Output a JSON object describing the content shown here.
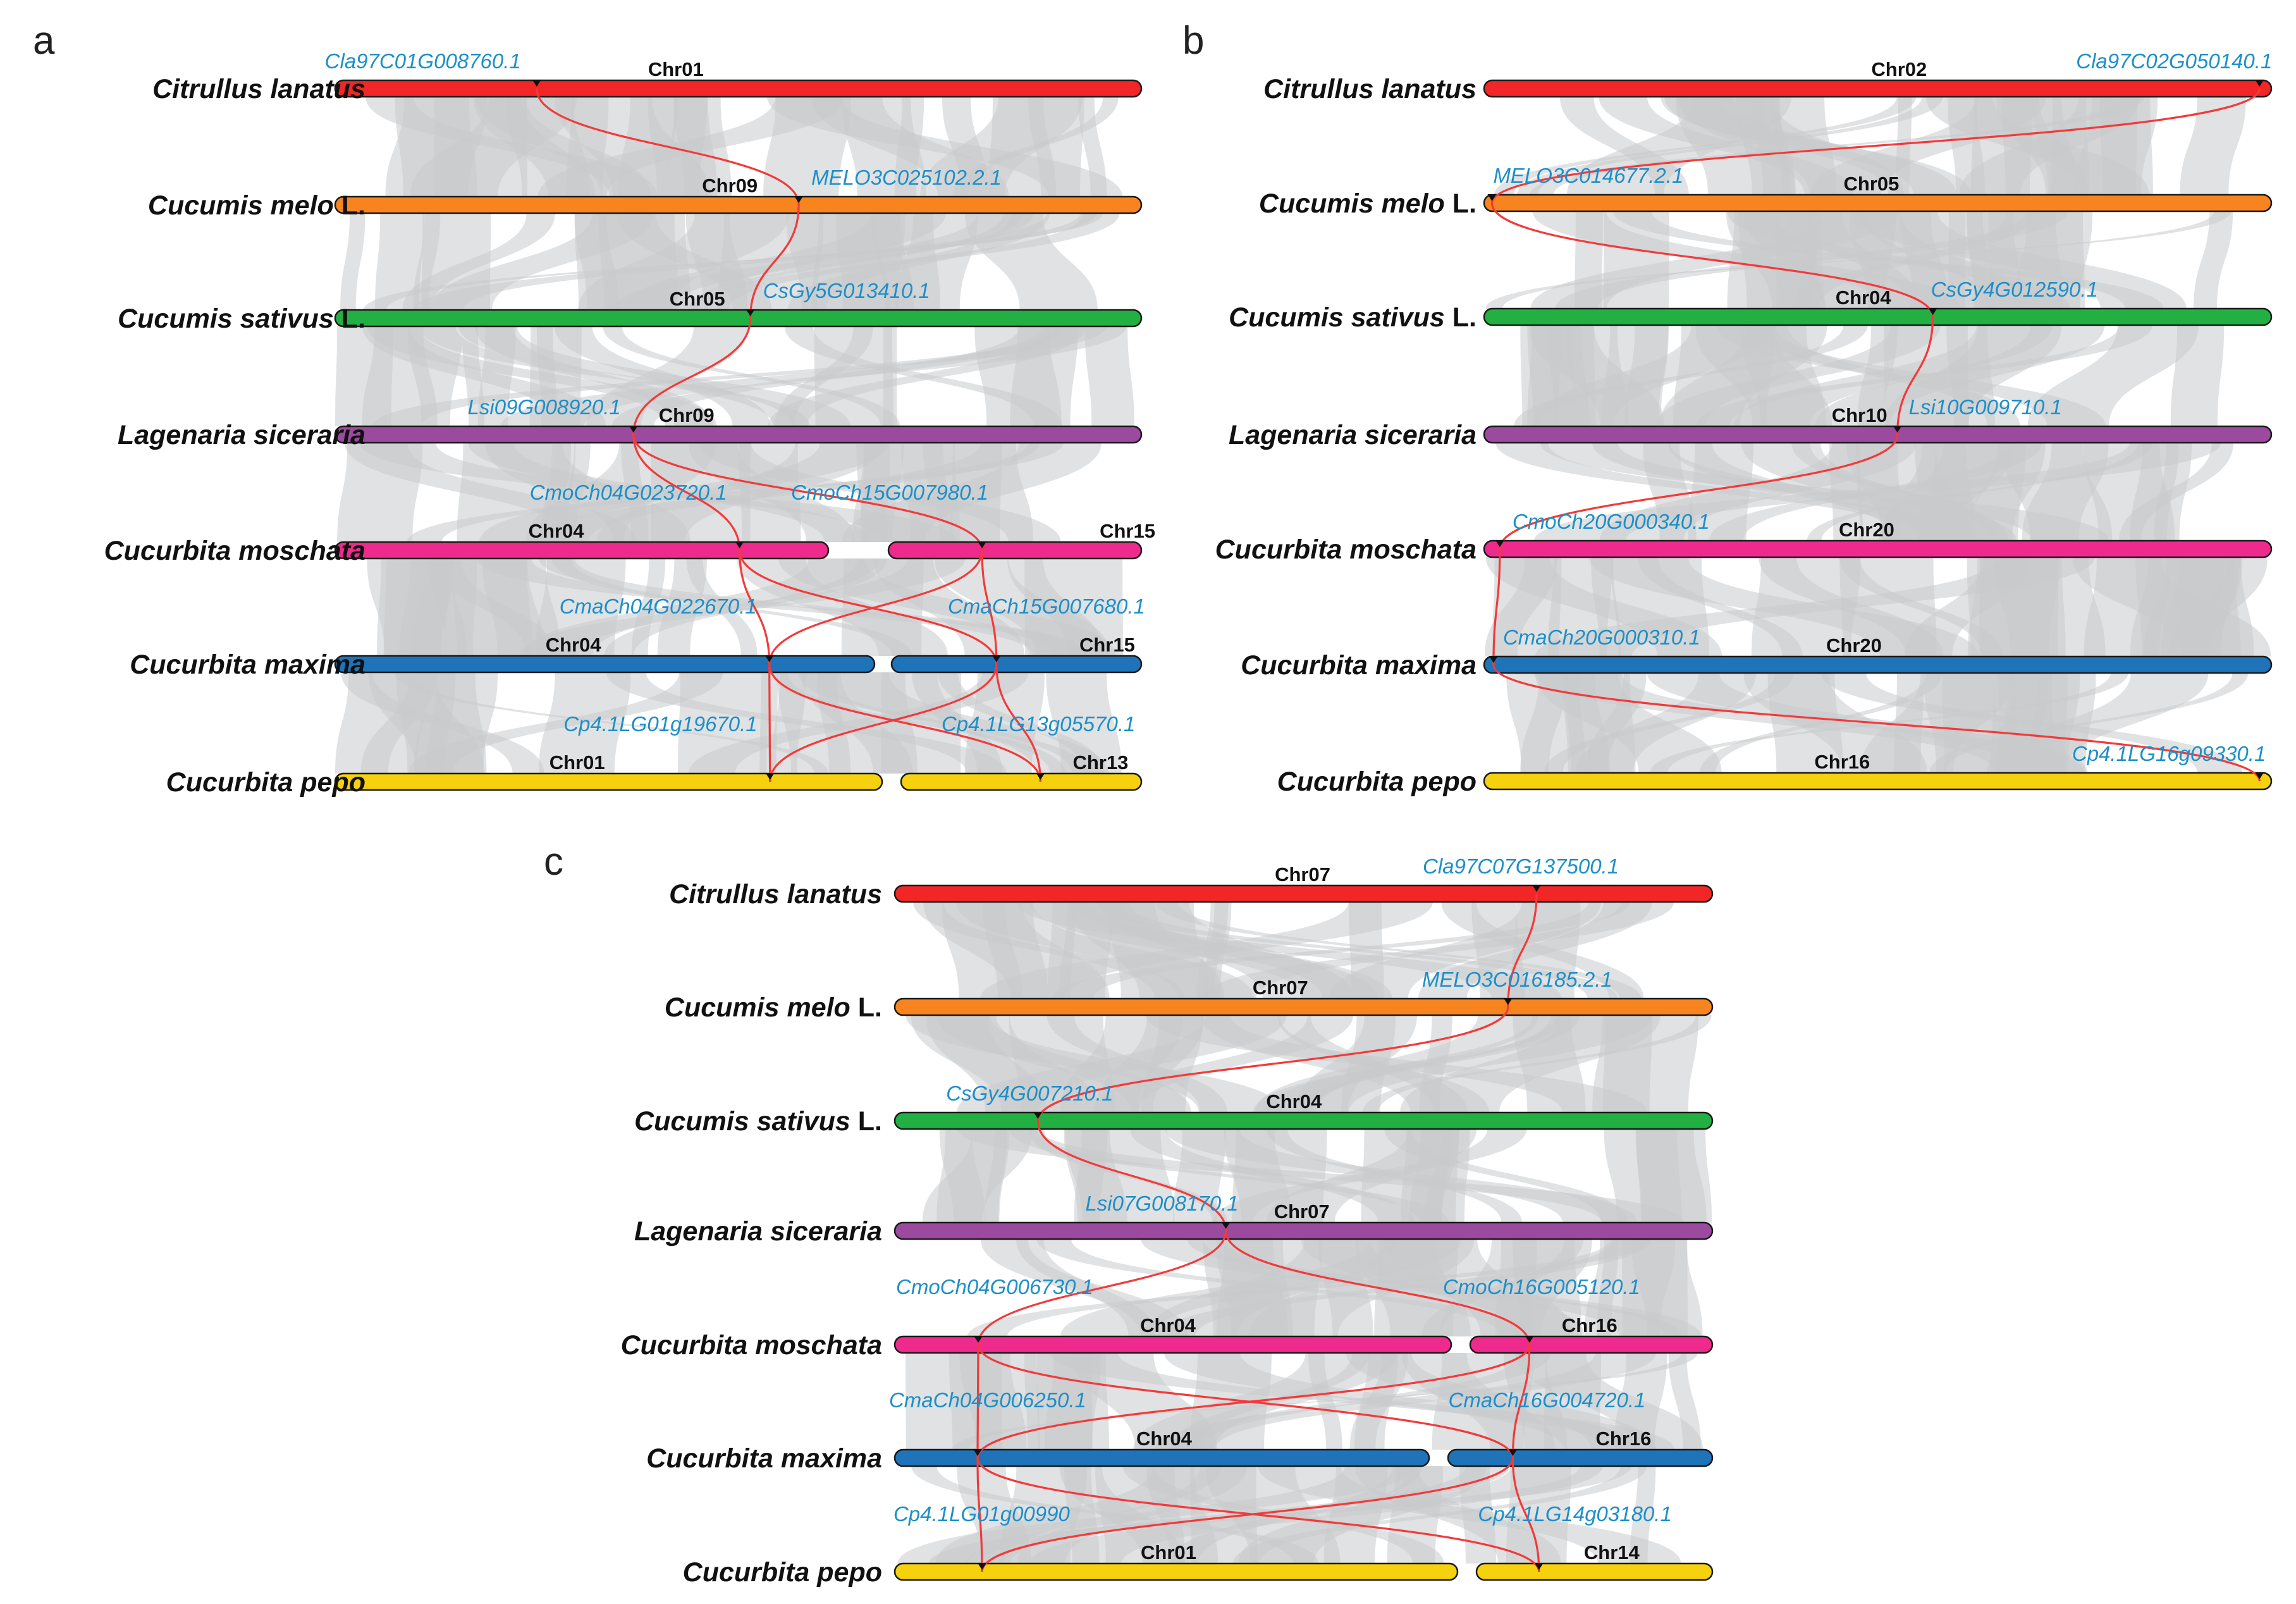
{
  "colors": {
    "ribbon": "#c9cacc",
    "link": "#f23a3a",
    "gene_text": "#1d8fc9",
    "bar_stroke": "#1a1a1a",
    "species": [
      "#f22626",
      "#f7841e",
      "#22b043",
      "#9b4aa0",
      "#ef2a8d",
      "#1f73b8",
      "#f6d10d"
    ]
  },
  "species": [
    {
      "name": "Citrullus lanatus",
      "suffix": ""
    },
    {
      "name": "Cucumis melo",
      "suffix": " L."
    },
    {
      "name": "Cucumis sativus",
      "suffix": " L."
    },
    {
      "name": "Lagenaria siceraria",
      "suffix": ""
    },
    {
      "name": "Cucurbita moschata",
      "suffix": ""
    },
    {
      "name": "Cucurbita maxima",
      "suffix": ""
    },
    {
      "name": "Cucurbita pepo",
      "suffix": ""
    }
  ],
  "panels": [
    {
      "letter": "a",
      "rows": [
        {
          "chrs": [
            {
              "label": "Chr01",
              "genes": [
                {
                  "id": "Cla97C01G008760.1",
                  "pos": 0.25
                }
              ]
            }
          ]
        },
        {
          "chrs": [
            {
              "label": "Chr09",
              "genes": [
                {
                  "id": "MELO3C025102.2.1",
                  "pos": 0.575
                }
              ]
            }
          ]
        },
        {
          "chrs": [
            {
              "label": "Chr05",
              "genes": [
                {
                  "id": "CsGy5G013410.1",
                  "pos": 0.515
                }
              ]
            }
          ]
        },
        {
          "chrs": [
            {
              "label": "Chr09",
              "genes": [
                {
                  "id": "Lsi09G008920.1",
                  "pos": 0.37
                }
              ]
            }
          ]
        },
        {
          "chrs": [
            {
              "label": "Chr04",
              "genes": [
                {
                  "id": "CmoCh04G023720.1",
                  "pos": 0.82
                }
              ]
            },
            {
              "label": "Chr15",
              "genes": [
                {
                  "id": "CmoCh15G007980.1",
                  "pos": 0.37
                }
              ]
            }
          ]
        },
        {
          "chrs": [
            {
              "label": "Chr04",
              "genes": [
                {
                  "id": "CmaCh04G022670.1",
                  "pos": 0.805
                }
              ]
            },
            {
              "label": "Chr15",
              "genes": [
                {
                  "id": "CmaCh15G007680.1",
                  "pos": 0.42
                }
              ]
            }
          ]
        },
        {
          "chrs": [
            {
              "label": "Chr01",
              "genes": [
                {
                  "id": "Cp4.1LG01g19670.1",
                  "pos": 0.795
                }
              ]
            },
            {
              "label": "Chr13",
              "genes": [
                {
                  "id": "Cp4.1LG13g05570.1",
                  "pos": 0.58
                }
              ]
            }
          ]
        }
      ],
      "links": [
        [
          "0.0.0",
          "1.0.0"
        ],
        [
          "1.0.0",
          "2.0.0"
        ],
        [
          "2.0.0",
          "3.0.0"
        ],
        [
          "3.0.0",
          "4.0.0"
        ],
        [
          "3.0.0",
          "4.1.0"
        ],
        [
          "4.0.0",
          "5.0.0"
        ],
        [
          "4.0.0",
          "5.1.0"
        ],
        [
          "4.1.0",
          "5.0.0"
        ],
        [
          "4.1.0",
          "5.1.0"
        ],
        [
          "5.0.0",
          "6.0.0"
        ],
        [
          "5.0.0",
          "6.1.0"
        ],
        [
          "5.1.0",
          "6.0.0"
        ],
        [
          "5.1.0",
          "6.1.0"
        ]
      ]
    },
    {
      "letter": "b",
      "rows": [
        {
          "chrs": [
            {
              "label": "Chr02",
              "genes": [
                {
                  "id": "Cla97C02G050140.1",
                  "pos": 0.985
                }
              ]
            }
          ]
        },
        {
          "chrs": [
            {
              "label": "Chr05",
              "genes": [
                {
                  "id": "MELO3C014677.2.1",
                  "pos": 0.01
                }
              ]
            }
          ]
        },
        {
          "chrs": [
            {
              "label": "Chr04",
              "genes": [
                {
                  "id": "CsGy4G012590.1",
                  "pos": 0.57
                }
              ]
            }
          ]
        },
        {
          "chrs": [
            {
              "label": "Chr10",
              "genes": [
                {
                  "id": "Lsi10G009710.1",
                  "pos": 0.525
                }
              ]
            }
          ]
        },
        {
          "chrs": [
            {
              "label": "Chr20",
              "genes": [
                {
                  "id": "CmoCh20G000340.1",
                  "pos": 0.02
                }
              ]
            }
          ]
        },
        {
          "chrs": [
            {
              "label": "Chr20",
              "genes": [
                {
                  "id": "CmaCh20G000310.1",
                  "pos": 0.012
                }
              ]
            }
          ]
        },
        {
          "chrs": [
            {
              "label": "Chr16",
              "genes": [
                {
                  "id": "Cp4.1LG16g09330.1",
                  "pos": 0.985
                }
              ]
            }
          ]
        }
      ],
      "links": [
        [
          "0.0.0",
          "1.0.0"
        ],
        [
          "1.0.0",
          "2.0.0"
        ],
        [
          "2.0.0",
          "3.0.0"
        ],
        [
          "3.0.0",
          "4.0.0"
        ],
        [
          "4.0.0",
          "5.0.0"
        ],
        [
          "5.0.0",
          "6.0.0"
        ]
      ]
    },
    {
      "letter": "c",
      "rows": [
        {
          "chrs": [
            {
              "label": "Chr07",
              "genes": [
                {
                  "id": "Cla97C07G137500.1",
                  "pos": 0.785
                }
              ]
            }
          ]
        },
        {
          "chrs": [
            {
              "label": "Chr07",
              "genes": [
                {
                  "id": "MELO3C016185.2.1",
                  "pos": 0.75
                }
              ]
            }
          ]
        },
        {
          "chrs": [
            {
              "label": "Chr04",
              "genes": [
                {
                  "id": "CsGy4G007210.1",
                  "pos": 0.175
                }
              ]
            }
          ]
        },
        {
          "chrs": [
            {
              "label": "Chr07",
              "genes": [
                {
                  "id": "Lsi07G008170.1",
                  "pos": 0.405
                }
              ]
            }
          ]
        },
        {
          "chrs": [
            {
              "label": "Chr04",
              "genes": [
                {
                  "id": "CmoCh04G006730.1",
                  "pos": 0.15
                }
              ]
            },
            {
              "label": "Chr16",
              "genes": [
                {
                  "id": "CmoCh16G005120.1",
                  "pos": 0.245
                }
              ]
            }
          ]
        },
        {
          "chrs": [
            {
              "label": "Chr04",
              "genes": [
                {
                  "id": "CmaCh04G006250.1",
                  "pos": 0.155
                }
              ]
            },
            {
              "label": "Chr16",
              "genes": [
                {
                  "id": "CmaCh16G004720.1",
                  "pos": 0.245
                }
              ]
            }
          ]
        },
        {
          "chrs": [
            {
              "label": "Chr01",
              "genes": [
                {
                  "id": "Cp4.1LG01g00990",
                  "pos": 0.155
                }
              ]
            },
            {
              "label": "Chr14",
              "genes": [
                {
                  "id": "Cp4.1LG14g03180.1",
                  "pos": 0.265
                }
              ]
            }
          ]
        }
      ],
      "links": [
        [
          "0.0.0",
          "1.0.0"
        ],
        [
          "1.0.0",
          "2.0.0"
        ],
        [
          "2.0.0",
          "3.0.0"
        ],
        [
          "3.0.0",
          "4.0.0"
        ],
        [
          "3.0.0",
          "4.1.0"
        ],
        [
          "4.0.0",
          "5.0.0"
        ],
        [
          "4.0.0",
          "5.1.0"
        ],
        [
          "4.1.0",
          "5.0.0"
        ],
        [
          "4.1.0",
          "5.1.0"
        ],
        [
          "5.0.0",
          "6.0.0"
        ],
        [
          "5.0.0",
          "6.1.0"
        ],
        [
          "5.1.0",
          "6.0.0"
        ],
        [
          "5.1.0",
          "6.1.0"
        ]
      ]
    }
  ]
}
